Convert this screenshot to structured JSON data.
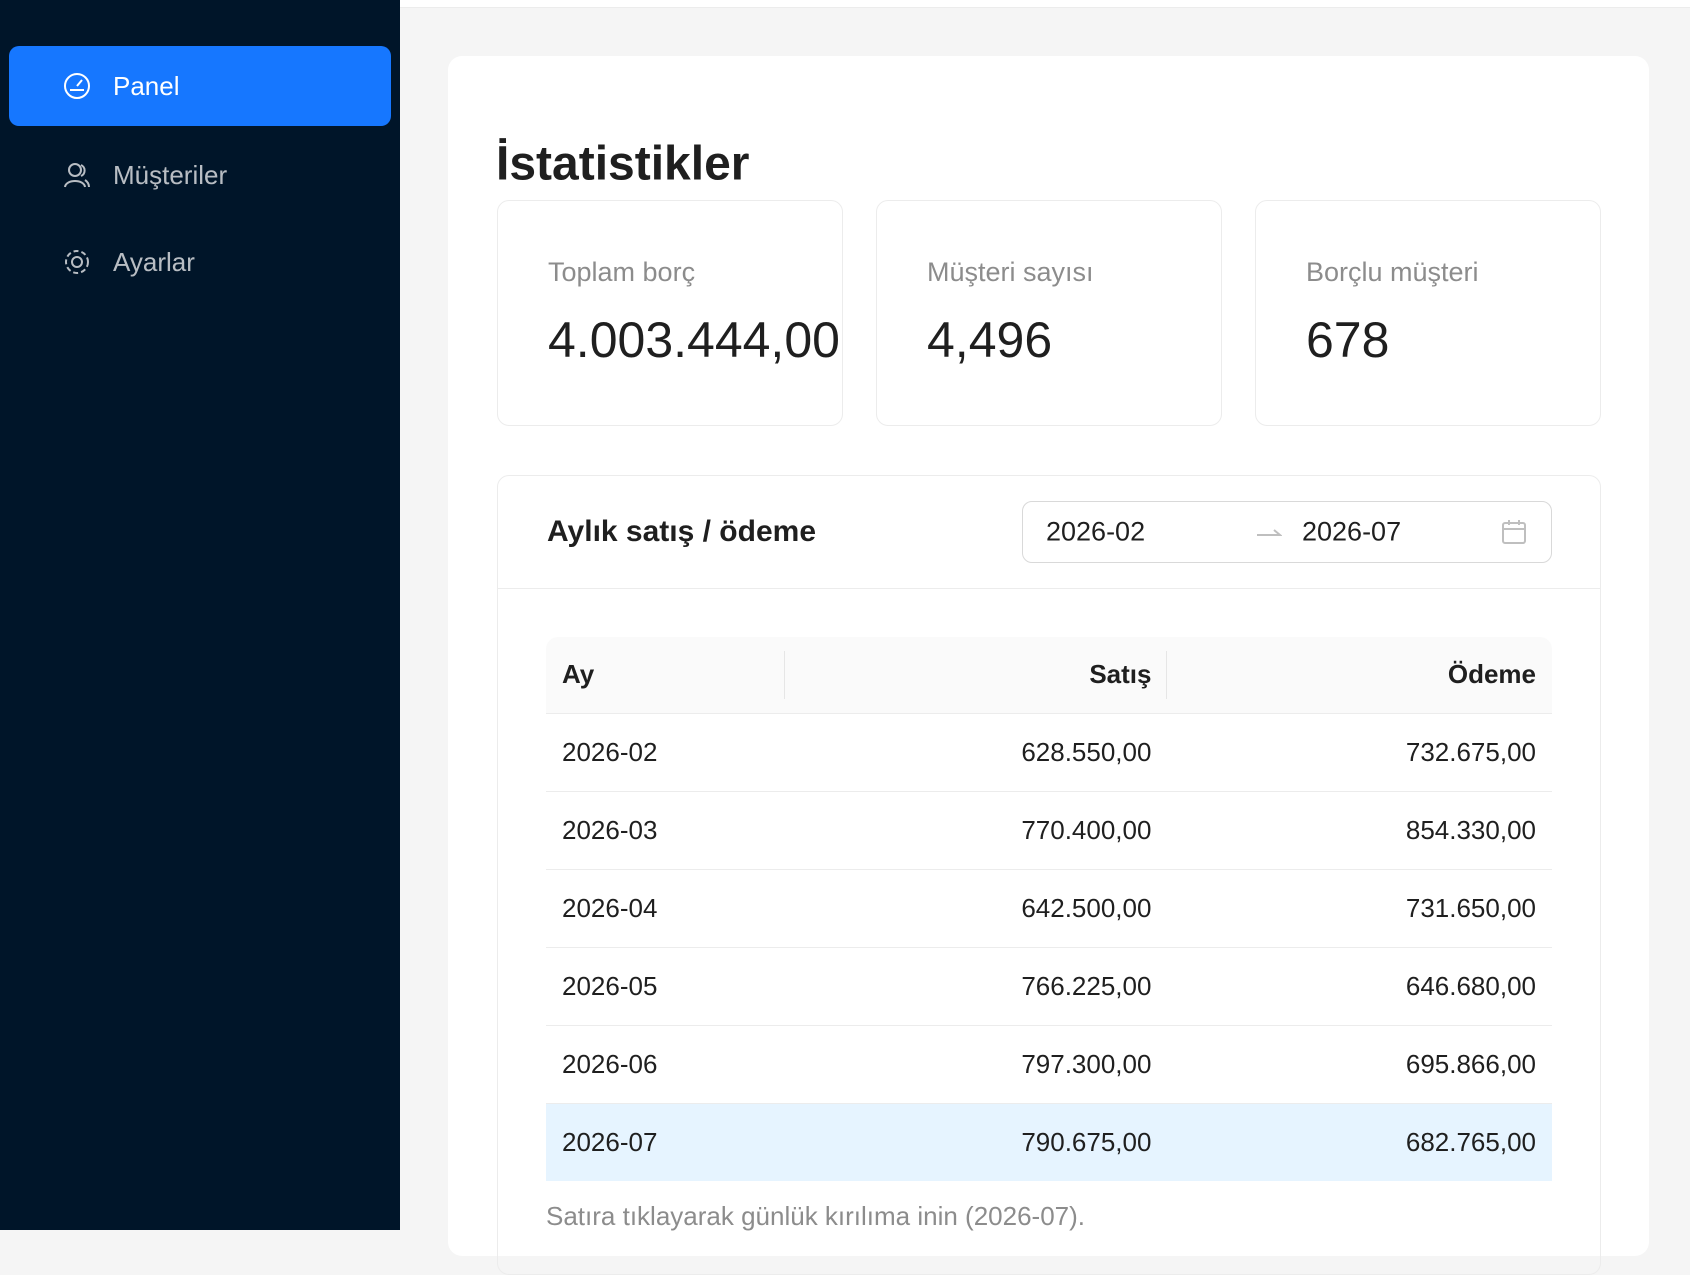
{
  "sidebar": {
    "menu": [
      {
        "label": "Panel",
        "active": true
      },
      {
        "label": "Müşteriler"
      },
      {
        "label": "Ayarlar"
      }
    ]
  },
  "page": {
    "title": "İstatistikler",
    "stats": [
      {
        "label": "Toplam borç",
        "value": "4.003.444,00"
      },
      {
        "label": "Müşteri sayısı",
        "value": "4,496"
      },
      {
        "label": "Borçlu müşteri",
        "value": "678"
      }
    ],
    "monthly": {
      "title": "Aylık satış / ödeme",
      "range": {
        "start": "2026-02",
        "end": "2026-07"
      },
      "table": {
        "columns": [
          "Ay",
          "Satış",
          "Ödeme"
        ],
        "rows": [
          {
            "cells": [
              "2026-02",
              "628.550,00",
              "732.675,00"
            ]
          },
          {
            "cells": [
              "2026-03",
              "770.400,00",
              "854.330,00"
            ]
          },
          {
            "cells": [
              "2026-04",
              "642.500,00",
              "731.650,00"
            ]
          },
          {
            "cells": [
              "2026-05",
              "766.225,00",
              "646.680,00"
            ]
          },
          {
            "cells": [
              "2026-06",
              "797.300,00",
              "695.866,00"
            ]
          },
          {
            "cells": [
              "2026-07",
              "790.675,00",
              "682.765,00"
            ],
            "selected": true
          }
        ]
      },
      "note": "Satıra tıklayarak günlük kırılıma inin (2026-07)."
    }
  }
}
